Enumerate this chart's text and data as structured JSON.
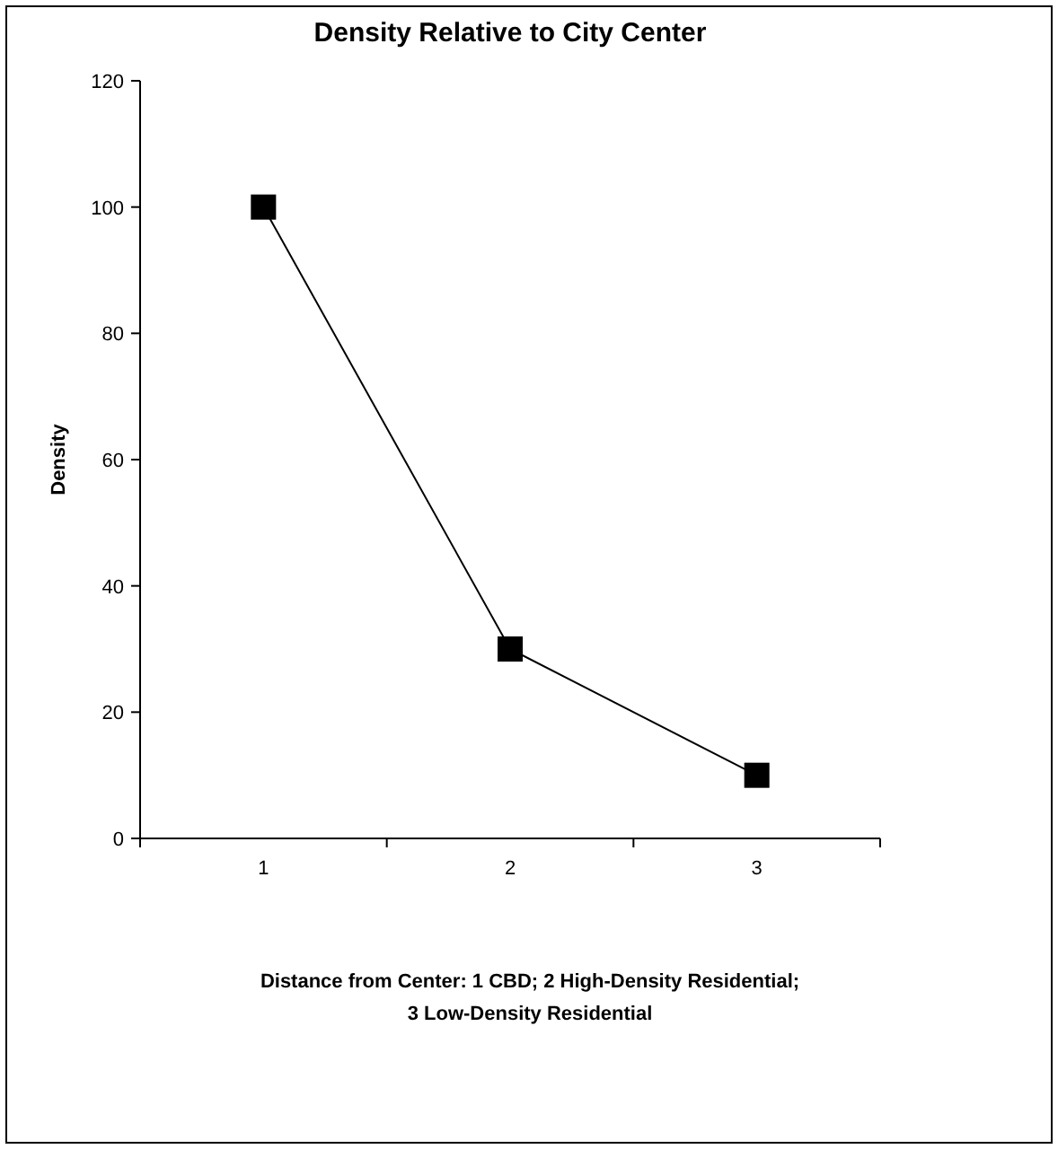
{
  "chart_data": {
    "type": "line",
    "title": "Density Relative to City Center",
    "xlabel": "Distance from Center: 1 CBD; 2 High-Density Residential;\n3 Low-Density Residential",
    "ylabel": "Density",
    "categories": [
      "1",
      "2",
      "3"
    ],
    "series": [
      {
        "color": "#000000",
        "values": [
          100,
          30,
          10
        ]
      }
    ],
    "ylim": [
      0,
      120
    ],
    "yticks": [
      0,
      20,
      40,
      60,
      80,
      100,
      120
    ],
    "grid": false,
    "marker": "square",
    "line_style": "solid"
  }
}
